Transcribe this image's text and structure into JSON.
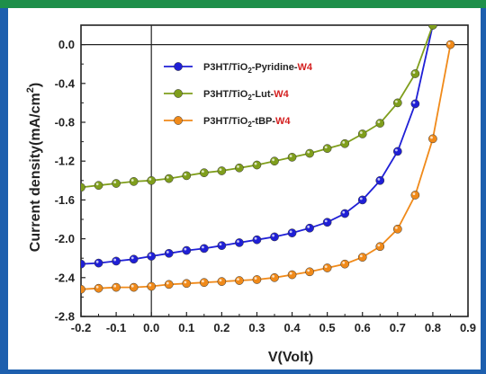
{
  "chart_data": {
    "type": "line",
    "xlabel": "V(Volt)",
    "ylabel_main": "Current density(mA/cm",
    "ylabel_sup": "2",
    "ylabel_close": ")",
    "xlim": [
      -0.2,
      0.9
    ],
    "ylim": [
      -2.8,
      0.2
    ],
    "xticks": [
      -0.2,
      -0.1,
      0.0,
      0.1,
      0.2,
      0.3,
      0.4,
      0.5,
      0.6,
      0.7,
      0.8,
      0.9
    ],
    "xtick_labels": [
      "-0.2",
      "-0.1",
      "0.0",
      "0.1",
      "0.2",
      "0.3",
      "0.4",
      "0.5",
      "0.6",
      "0.7",
      "0.8",
      "0.9"
    ],
    "yticks": [
      0.0,
      -0.4,
      -0.8,
      -1.2,
      -1.6,
      -2.0,
      -2.4,
      -2.8
    ],
    "ytick_labels": [
      "0.0",
      "-0.4",
      "-0.8",
      "-1.2",
      "-1.6",
      "-2.0",
      "-2.4",
      "-2.8"
    ],
    "grid": false,
    "legend_position": "top-left",
    "series": [
      {
        "name": "P3HT/TiO2-Pyridine-W4",
        "legend": {
          "prefix": "P3HT/TiO",
          "sub": "2",
          "middle": "-Pyridine-",
          "suffix": "W4"
        },
        "color": "#1f1fd6",
        "x": [
          -0.2,
          -0.15,
          -0.1,
          -0.05,
          0.0,
          0.05,
          0.1,
          0.15,
          0.2,
          0.25,
          0.3,
          0.35,
          0.4,
          0.45,
          0.5,
          0.55,
          0.6,
          0.65,
          0.7,
          0.75,
          0.8
        ],
        "y": [
          -2.26,
          -2.25,
          -2.23,
          -2.21,
          -2.18,
          -2.15,
          -2.12,
          -2.1,
          -2.07,
          -2.04,
          -2.01,
          -1.98,
          -1.94,
          -1.89,
          -1.83,
          -1.74,
          -1.6,
          -1.4,
          -1.1,
          -0.61,
          0.2
        ]
      },
      {
        "name": "P3HT/TiO2-Lut-W4",
        "legend": {
          "prefix": "P3HT/TiO",
          "sub": "2",
          "middle": "-Lut-",
          "suffix": "W4"
        },
        "color": "#7f9e1c",
        "x": [
          -0.2,
          -0.15,
          -0.1,
          -0.05,
          0.0,
          0.05,
          0.1,
          0.15,
          0.2,
          0.25,
          0.3,
          0.35,
          0.4,
          0.45,
          0.5,
          0.55,
          0.6,
          0.65,
          0.7,
          0.75,
          0.8
        ],
        "y": [
          -1.47,
          -1.45,
          -1.43,
          -1.41,
          -1.4,
          -1.38,
          -1.35,
          -1.32,
          -1.3,
          -1.27,
          -1.24,
          -1.2,
          -1.16,
          -1.12,
          -1.07,
          -1.02,
          -0.92,
          -0.81,
          -0.6,
          -0.3,
          0.2
        ]
      },
      {
        "name": "P3HT/TiO2-tBP-W4",
        "legend": {
          "prefix": "P3HT/TiO",
          "sub": "2",
          "middle": "-tBP-",
          "suffix": "W4"
        },
        "color": "#f08a1a",
        "x": [
          -0.2,
          -0.15,
          -0.1,
          -0.05,
          0.0,
          0.05,
          0.1,
          0.15,
          0.2,
          0.25,
          0.3,
          0.35,
          0.4,
          0.45,
          0.5,
          0.55,
          0.6,
          0.65,
          0.7,
          0.75,
          0.8,
          0.85
        ],
        "y": [
          -2.52,
          -2.51,
          -2.5,
          -2.5,
          -2.49,
          -2.47,
          -2.46,
          -2.45,
          -2.44,
          -2.43,
          -2.42,
          -2.4,
          -2.37,
          -2.34,
          -2.3,
          -2.26,
          -2.19,
          -2.08,
          -1.9,
          -1.55,
          -0.97,
          0.0
        ]
      }
    ],
    "legend_suffix_color": "#d42020"
  }
}
